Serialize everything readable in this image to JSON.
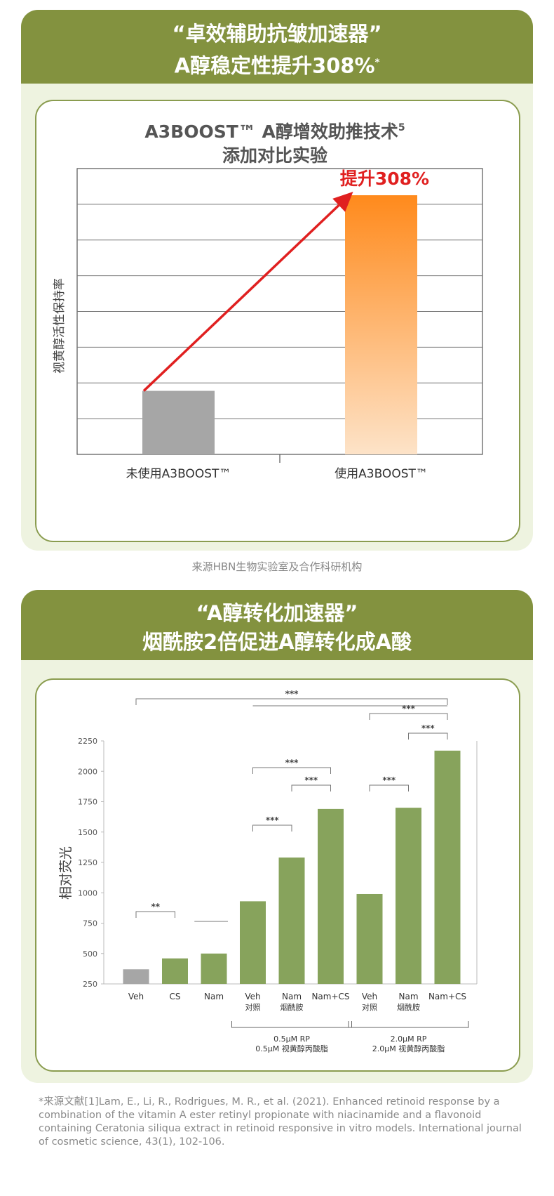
{
  "section1": {
    "title_line1": "“卓效辅助抗皱加速器”",
    "title_line2": "A醇稳定性提升308%",
    "title_sup": "*",
    "chart_title_line1": "A3BOOST™ A醇增效助推技术",
    "chart_title_sup": "5",
    "chart_title_line2": "添加对比实验",
    "source": "来源HBN生物实验室及合作科研机构"
  },
  "section2": {
    "title_line1": "“A醇转化加速器”",
    "title_line2": "烟酰胺2倍促进A醇转化成A酸"
  },
  "reference": "*来源文献[1]Lam, E., Li, R., Rodrigues, M. R., et al. (2021). Enhanced retinoid response by a combination of the vitamin A ester retinyl propionate with niacinamide and a flavonoid containing Ceratonia siliqua extract in retinoid responsive in vitro models. International journal of cosmetic science, 43(1), 102-106.",
  "chart_data": [
    {
      "type": "bar",
      "title": "A3BOOST™ A醇增效助推技术5 添加对比实验",
      "ylabel": "视黄醇活性保持率",
      "categories": [
        "未使用A3BOOST™",
        "使用A3BOOST™"
      ],
      "values": [
        1,
        4.08
      ],
      "ylim": [
        0,
        4.5
      ],
      "grid": true,
      "annotation": "提升308%",
      "bar_colors": [
        "#a6a6a6",
        "#ff8a1c"
      ],
      "arrow_color": "#e02020"
    },
    {
      "type": "bar",
      "ylabel": "相对荧光",
      "ylim": [
        250,
        2250
      ],
      "yticks": [
        250,
        500,
        750,
        1000,
        1250,
        1500,
        1750,
        2000,
        2250
      ],
      "categories": [
        {
          "label": "Veh",
          "sub": ""
        },
        {
          "label": "CS",
          "sub": ""
        },
        {
          "label": "Nam",
          "sub": ""
        },
        {
          "label": "Veh",
          "sub": "对照"
        },
        {
          "label": "Nam",
          "sub": "烟酰胺"
        },
        {
          "label": "Nam+CS",
          "sub": ""
        },
        {
          "label": "Veh",
          "sub": "对照"
        },
        {
          "label": "Nam",
          "sub": "烟酰胺"
        },
        {
          "label": "Nam+CS",
          "sub": ""
        }
      ],
      "values": [
        370,
        460,
        500,
        930,
        1290,
        1690,
        990,
        1700,
        2170
      ],
      "bar_colors": [
        "#a6a6a6",
        "#87a35c",
        "#87a35c",
        "#87a35c",
        "#87a35c",
        "#87a35c",
        "#87a35c",
        "#87a35c",
        "#87a35c"
      ],
      "groups": [
        {
          "line1": "0.5μM RP",
          "line2": "0.5μM 视黄醇丙酸脂",
          "from": 3,
          "to": 5
        },
        {
          "line1": "2.0μM RP",
          "line2": "2.0μM 视黄醇丙酸脂",
          "from": 6,
          "to": 8
        }
      ],
      "significance": [
        {
          "label": "**",
          "from": 0,
          "to": 1
        },
        {
          "label": "***",
          "from": 3,
          "to": 4
        },
        {
          "label": "***",
          "from": 3,
          "to": 5
        },
        {
          "label": "***",
          "from": 4,
          "to": 5
        },
        {
          "label": "***",
          "from": 6,
          "to": 7
        },
        {
          "label": "***",
          "from": 7,
          "to": 8
        },
        {
          "label": "***",
          "from": 6,
          "to": 8
        },
        {
          "label": "***",
          "from": 0,
          "to": 8
        }
      ]
    }
  ]
}
